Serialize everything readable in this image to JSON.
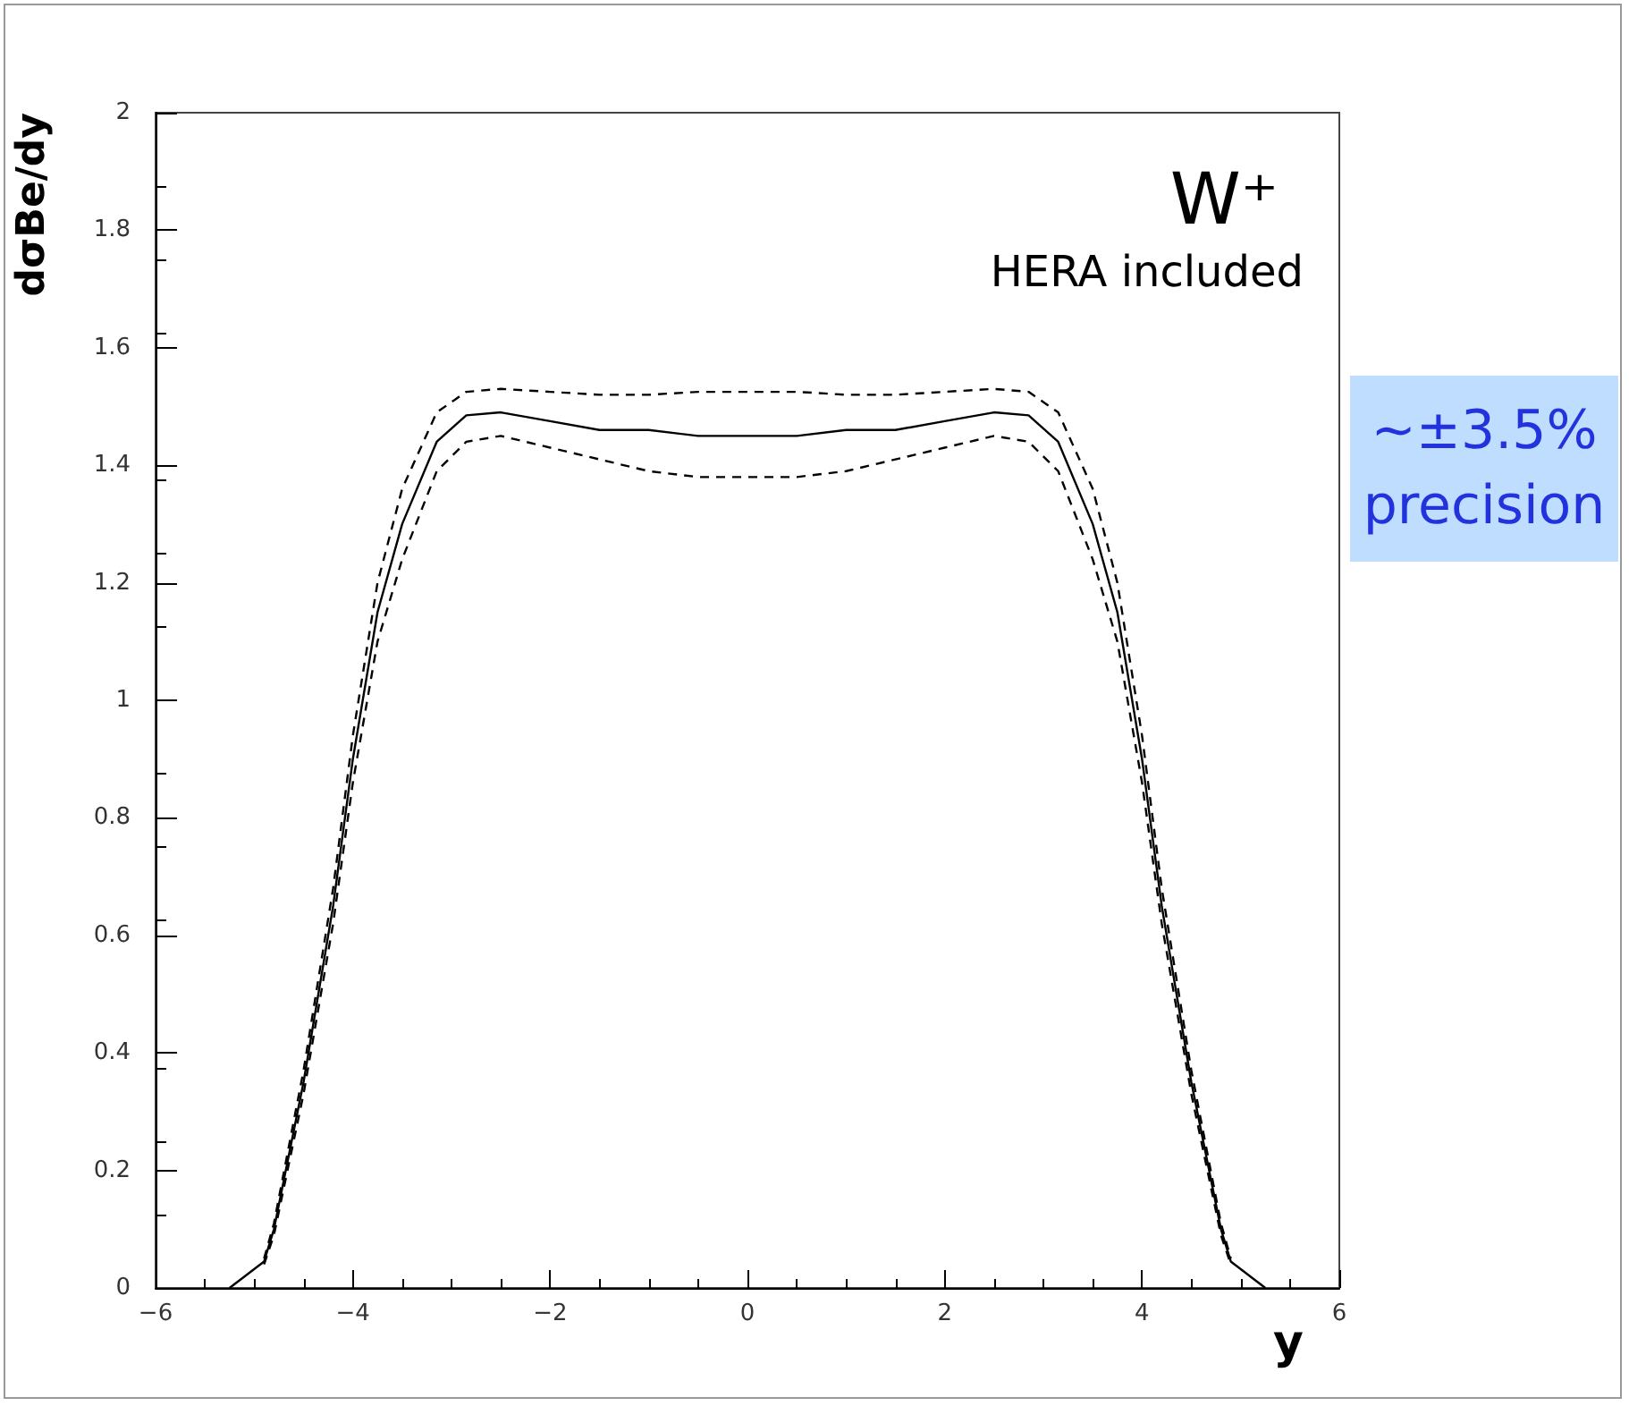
{
  "chart_data": {
    "type": "line",
    "xlabel": "y",
    "ylabel": "dσBe/dy",
    "annotations": [
      "W⁺",
      "HERA included",
      "~±3.5% precision"
    ],
    "x": [
      -5.25,
      -4.9,
      -4.8,
      -4.5,
      -4.2,
      -4,
      -3.75,
      -3.5,
      -3.15,
      -2.85,
      -2.5,
      -2,
      -1.5,
      -1,
      -0.5,
      0,
      0.5,
      1,
      1.5,
      2,
      2.5,
      2.85,
      3.15,
      3.5,
      3.75,
      4,
      4.2,
      4.5,
      4.8,
      4.9,
      5.25
    ],
    "series": [
      {
        "color": "#000000",
        "line_style": "solid",
        "values": [
          0,
          0.045,
          0.1,
          0.35,
          0.65,
          0.9,
          1.15,
          1.3,
          1.44,
          1.485,
          1.49,
          1.475,
          1.46,
          1.46,
          1.45,
          1.45,
          1.45,
          1.46,
          1.46,
          1.475,
          1.49,
          1.485,
          1.44,
          1.3,
          1.15,
          0.9,
          0.65,
          0.35,
          0.1,
          0.045,
          0
        ]
      },
      {
        "color": "#000000",
        "line_style": "dashed",
        "x": [
          -4.9,
          -4.8,
          -4.5,
          -4.2,
          -4,
          -3.75,
          -3.5,
          -3.15,
          -2.85,
          -2.5,
          -2,
          -1.5,
          -1,
          -0.5,
          0,
          0.5,
          1,
          1.5,
          2,
          2.5,
          2.85,
          3.15,
          3.5,
          3.75,
          4,
          4.2,
          4.5,
          4.8,
          4.9
        ],
        "values": [
          0.05,
          0.11,
          0.37,
          0.68,
          0.94,
          1.2,
          1.36,
          1.49,
          1.525,
          1.53,
          1.525,
          1.52,
          1.52,
          1.525,
          1.525,
          1.525,
          1.52,
          1.52,
          1.525,
          1.53,
          1.525,
          1.49,
          1.36,
          1.2,
          0.94,
          0.68,
          0.37,
          0.11,
          0.05
        ]
      },
      {
        "color": "#000000",
        "line_style": "dashed",
        "x": [
          -4.9,
          -4.8,
          -4.5,
          -4.2,
          -4,
          -3.75,
          -3.5,
          -3.15,
          -2.85,
          -2.5,
          -2,
          -1.5,
          -1,
          -0.5,
          0,
          0.5,
          1,
          1.5,
          2,
          2.5,
          2.85,
          3.15,
          3.5,
          3.75,
          4,
          4.2,
          4.5,
          4.8,
          4.9
        ],
        "values": [
          0.04,
          0.09,
          0.33,
          0.62,
          0.86,
          1.1,
          1.24,
          1.39,
          1.44,
          1.45,
          1.43,
          1.41,
          1.39,
          1.38,
          1.38,
          1.38,
          1.39,
          1.41,
          1.43,
          1.45,
          1.44,
          1.39,
          1.24,
          1.1,
          0.86,
          0.62,
          0.33,
          0.09,
          0.04
        ]
      }
    ],
    "xlim": [
      -6,
      6
    ],
    "xticks": [
      {
        "value": -6,
        "label": "−6"
      },
      {
        "value": -4,
        "label": "−4"
      },
      {
        "value": -2,
        "label": "−2"
      },
      0,
      2,
      4,
      6
    ],
    "ylim": [
      0,
      2
    ],
    "yticks": [
      0,
      0.2,
      0.4,
      0.6,
      0.8,
      1,
      1.2,
      1.4,
      1.6,
      1.8,
      2
    ],
    "grid": false,
    "marker": "none"
  }
}
